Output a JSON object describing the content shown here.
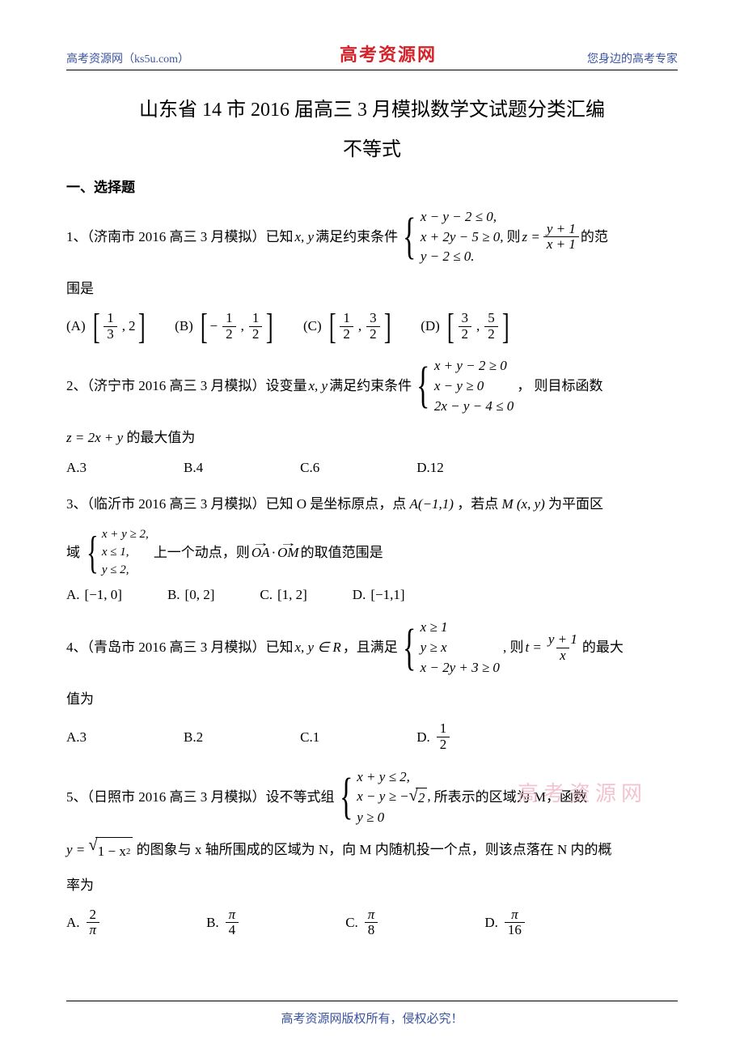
{
  "header": {
    "left": "高考资源网（ks5u.com）",
    "center": "高考资源网",
    "right": "您身边的高考专家"
  },
  "title": "山东省 14 市 2016 届高三 3 月模拟数学文试题分类汇编",
  "subtitle": "不等式",
  "section1": "一、选择题",
  "q1": {
    "lead": "1、（济南市 2016 高三 3 月模拟）已知",
    "var": "x, y",
    "mid1": "满足约束条件",
    "sys": [
      "x − y − 2 ≤ 0,",
      "x + 2y − 5 ≥ 0,",
      "y − 2 ≤ 0."
    ],
    "mid2": "则",
    "zexpr_l": "z =",
    "frac_num": "y + 1",
    "frac_den": "x + 1",
    "tail": "的范",
    "tail2": "围是",
    "opts": {
      "A": "(A)",
      "A_l": "1",
      "A_ld": "3",
      "A_r": "2",
      "B": "(B)",
      "B_l": "1",
      "B_ld": "2",
      "B_r": "1",
      "B_rd": "2",
      "B_neg": "−",
      "C": "(C)",
      "C_l": "1",
      "C_ld": "2",
      "C_r": "3",
      "C_rd": "2",
      "D": "(D)",
      "D_l": "3",
      "D_ld": "2",
      "D_r": "5",
      "D_rd": "2"
    }
  },
  "q2": {
    "lead": "2、（济宁市 2016 高三 3 月模拟）设变量",
    "var": " x, y ",
    "mid1": "满足约束条件",
    "sys": [
      "x + y − 2 ≥ 0",
      "x − y ≥ 0",
      "2x − y − 4 ≤ 0"
    ],
    "tail": "，  则目标函数",
    "zline": " z = 2x + y ",
    "zline_tail": "的最大值为",
    "opts": {
      "A": "A.3",
      "B": "B.4",
      "C": "C.6",
      "D": "D.12"
    }
  },
  "q3": {
    "lead": "3、（临沂市 2016 高三 3 月模拟）已知 O 是坐标原点，点 ",
    "pt": "A(−1,1)",
    "mid1": "，若点 ",
    "pt2": "M (x, y)",
    "tail1": " 为平面区",
    "line2a": "域",
    "sys": [
      "x + y ≥ 2,",
      "x ≤ 1,",
      "y ≤ 2,"
    ],
    "mid2": "上一个动点，则",
    "oa": "OA",
    "om": "OM",
    "dot": "·",
    "tail2": " 的取值范围是",
    "opts": {
      "A": "A.",
      "Av": "[−1, 0]",
      "B": "B.",
      "Bv": "[0, 2]",
      "C": "C.",
      "Cv": "[1, 2]",
      "D": "D.",
      "Dv": "[−1,1]"
    }
  },
  "q4": {
    "lead": "4、（青岛市 2016 高三 3 月模拟）已知",
    "var": " x, y ∈ R",
    "mid1": "，且满足",
    "sys": [
      "x ≥ 1",
      "y ≥ x",
      "x − 2y + 3 ≥ 0"
    ],
    "mid2": ", 则",
    "texpr": "t =",
    "frac_num": "y + 1",
    "frac_den": "x",
    "tail": " 的最大",
    "tail2": "值为",
    "opts": {
      "A": "A.3",
      "B": "B.2",
      "C": "C.1",
      "D": "D.",
      "D_num": "1",
      "D_den": "2"
    }
  },
  "q5": {
    "lead": "5、（日照市 2016 高三 3 月模拟）设不等式组",
    "sys": [
      "x + y ≤ 2,",
      "x − y ≥ −√2,",
      "y ≥ 0"
    ],
    "sys_sqrt_arg": "2",
    "tail1": "所表示的区域为 M，函数",
    "line2_y": " y =",
    "sqrt_arg": "1 − x",
    "sq_exp": "2",
    "line2_tail": " 的图象与 x 轴所围成的区域为 N，向 M 内随机投一个点，则该点落在 N 内的概",
    "line3": "率为",
    "opts": {
      "A": "A.",
      "A_num": "2",
      "A_den": "π",
      "B": "B.",
      "B_num": "π",
      "B_den": "4",
      "C": "C.",
      "C_num": "π",
      "C_den": "8",
      "D": "D.",
      "D_num": "π",
      "D_den": "16"
    }
  },
  "watermark": "高考资源网",
  "footer": "高考资源网版权所有，侵权必究！"
}
